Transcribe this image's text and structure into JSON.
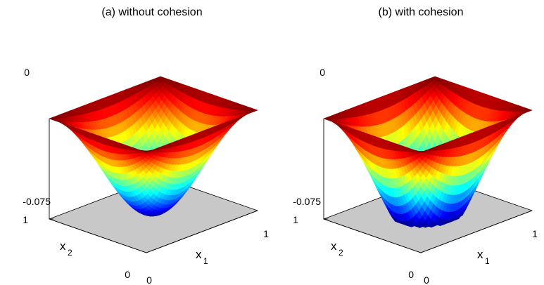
{
  "chart_data": [
    {
      "type": "surface3d",
      "title": "(a) without cohesion",
      "xlabel": "x",
      "xlabel_sub": "1",
      "ylabel": "x",
      "ylabel_sub": "2",
      "x_ticks": [
        "0",
        "1"
      ],
      "y_ticks": [
        "0",
        "1"
      ],
      "z_ticks": [
        "-0.075",
        "0"
      ],
      "xlim": [
        0,
        1
      ],
      "ylim": [
        0,
        1
      ],
      "zlim": [
        -0.075,
        0
      ],
      "z_min": -0.075,
      "colormap": "jet",
      "floor_color": "#c8c8c8",
      "contact_region": false
    },
    {
      "type": "surface3d",
      "title": "(b) with cohesion",
      "xlabel": "x",
      "xlabel_sub": "1",
      "ylabel": "x",
      "ylabel_sub": "2",
      "x_ticks": [
        "0",
        "1"
      ],
      "y_ticks": [
        "0",
        "1"
      ],
      "z_ticks": [
        "-0.075",
        "0"
      ],
      "xlim": [
        0,
        1
      ],
      "ylim": [
        0,
        1
      ],
      "zlim": [
        -0.075,
        0
      ],
      "z_min": -0.075,
      "colormap": "jet",
      "floor_color": "#c8c8c8",
      "contact_region": true
    }
  ]
}
